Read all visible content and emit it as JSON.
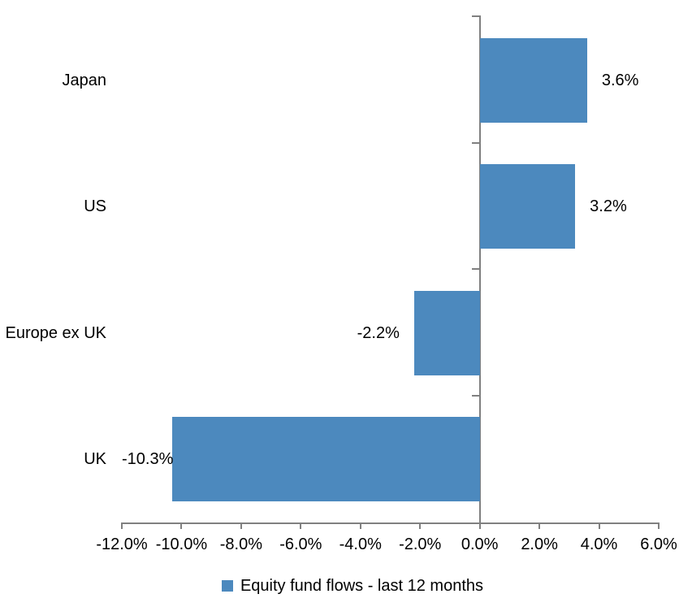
{
  "chart_data": {
    "type": "bar",
    "orientation": "horizontal",
    "title": "",
    "xlabel": "",
    "ylabel": "",
    "categories": [
      "Japan",
      "US",
      "Europe ex UK",
      "UK"
    ],
    "series": [
      {
        "name": "Equity fund flows - last 12 months",
        "values": [
          3.6,
          3.2,
          -2.2,
          -10.3
        ],
        "value_labels": [
          "3.6%",
          "3.2%",
          "-2.2%",
          "-10.3%"
        ]
      }
    ],
    "xlim": [
      -12,
      6
    ],
    "x_ticks": [
      -12,
      -10,
      -8,
      -6,
      -4,
      -2,
      0,
      2,
      4,
      6
    ],
    "x_tick_labels": [
      "-12.0%",
      "-10.0%",
      "-8.0%",
      "-6.0%",
      "-4.0%",
      "-2.0%",
      "0.0%",
      "2.0%",
      "4.0%",
      "6.0%"
    ],
    "grid": false,
    "legend_position": "bottom-center",
    "legend_label": "Equity fund flows - last 12 months",
    "colors": {
      "bar": "#4C89BE",
      "axis": "#808080",
      "text": "#000000",
      "background": "#ffffff"
    }
  }
}
